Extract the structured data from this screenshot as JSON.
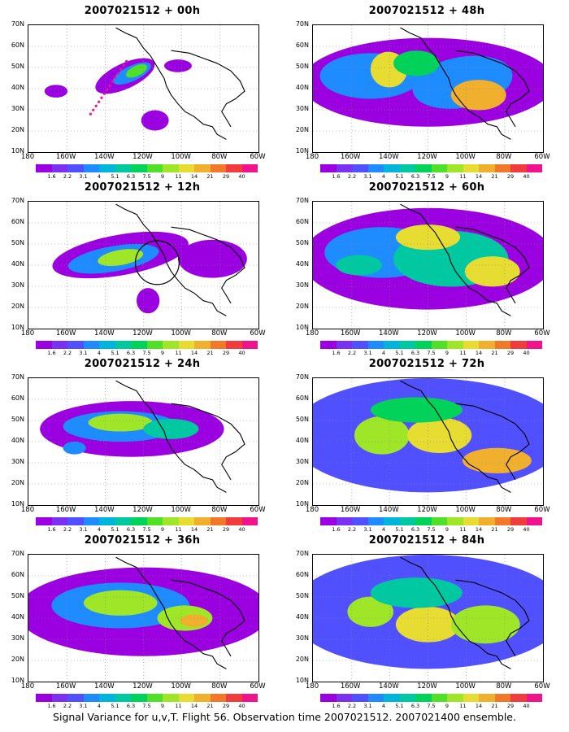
{
  "caption": "Signal Variance for u,v,T. Flight 56. Observation time 2007021512. 2007021400 ensemble.",
  "lat_labels": [
    "70N",
    "60N",
    "50N",
    "40N",
    "30N",
    "20N",
    "10N"
  ],
  "lon_labels": [
    "180",
    "160W",
    "140W",
    "120W",
    "100W",
    "80W",
    "60W"
  ],
  "colorbar": {
    "labels": [
      "1.6",
      "2.2",
      "3.1",
      "4",
      "5.1",
      "6.3",
      "7.5",
      "9",
      "11",
      "14",
      "21",
      "29",
      "40"
    ],
    "colors": [
      "#9a00e0",
      "#7a32f0",
      "#5050ff",
      "#1e8cff",
      "#00b4dc",
      "#00c8a0",
      "#00d25a",
      "#50e028",
      "#a0e628",
      "#e6dc32",
      "#f0af2d",
      "#f07828",
      "#f03c3c",
      "#f0148c"
    ]
  },
  "panels": [
    {
      "title": "2007021512 + 00h"
    },
    {
      "title": "2007021512 + 48h"
    },
    {
      "title": "2007021512 + 12h"
    },
    {
      "title": "2007021512 + 60h"
    },
    {
      "title": "2007021512 + 24h"
    },
    {
      "title": "2007021512 + 72h"
    },
    {
      "title": "2007021512 + 36h"
    },
    {
      "title": "2007021512 + 84h"
    }
  ]
}
